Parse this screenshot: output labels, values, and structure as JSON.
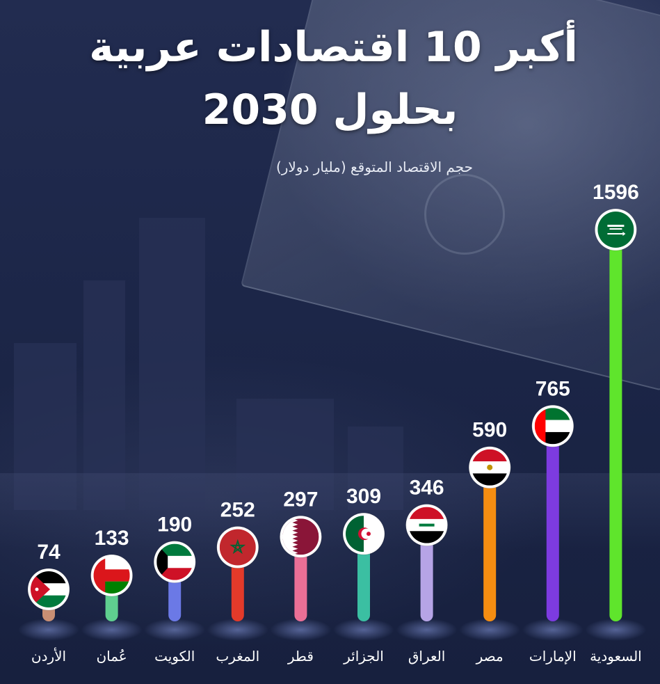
{
  "title_line1": "أكبر 10 اقتصادات عربية",
  "title_line2": "بحلول 2030",
  "subtitle": "حجم الاقتصاد المتوقع (مليار دولار)",
  "chart_data": {
    "type": "bar",
    "title": "أكبر 10 اقتصادات عربية بحلول 2030",
    "subtitle": "حجم الاقتصاد المتوقع (مليار دولار)",
    "categories": [
      "الأردن",
      "عُمان",
      "الكويت",
      "المغرب",
      "قطر",
      "الجزائر",
      "العراق",
      "مصر",
      "الإمارات",
      "السعودية"
    ],
    "values": [
      74,
      133,
      190,
      252,
      297,
      309,
      346,
      590,
      765,
      1596
    ],
    "value_labels": [
      "74",
      "133",
      "190",
      "252",
      "297",
      "309",
      "346",
      "590",
      "765",
      "1596"
    ],
    "bar_colors": [
      "#c98f74",
      "#5fcf8f",
      "#6b79e6",
      "#e33a2a",
      "#ea6f96",
      "#3bbfa2",
      "#b6a4e6",
      "#f58d11",
      "#7d3be0",
      "#5fe52c"
    ],
    "flag_icons": [
      "jordan-flag-icon",
      "oman-flag-icon",
      "kuwait-flag-icon",
      "morocco-flag-icon",
      "qatar-flag-icon",
      "algeria-flag-icon",
      "iraq-flag-icon",
      "egypt-flag-icon",
      "uae-flag-icon",
      "saudi-flag-icon"
    ],
    "ylim": [
      0,
      1596
    ],
    "grid": false,
    "legend": "none"
  }
}
